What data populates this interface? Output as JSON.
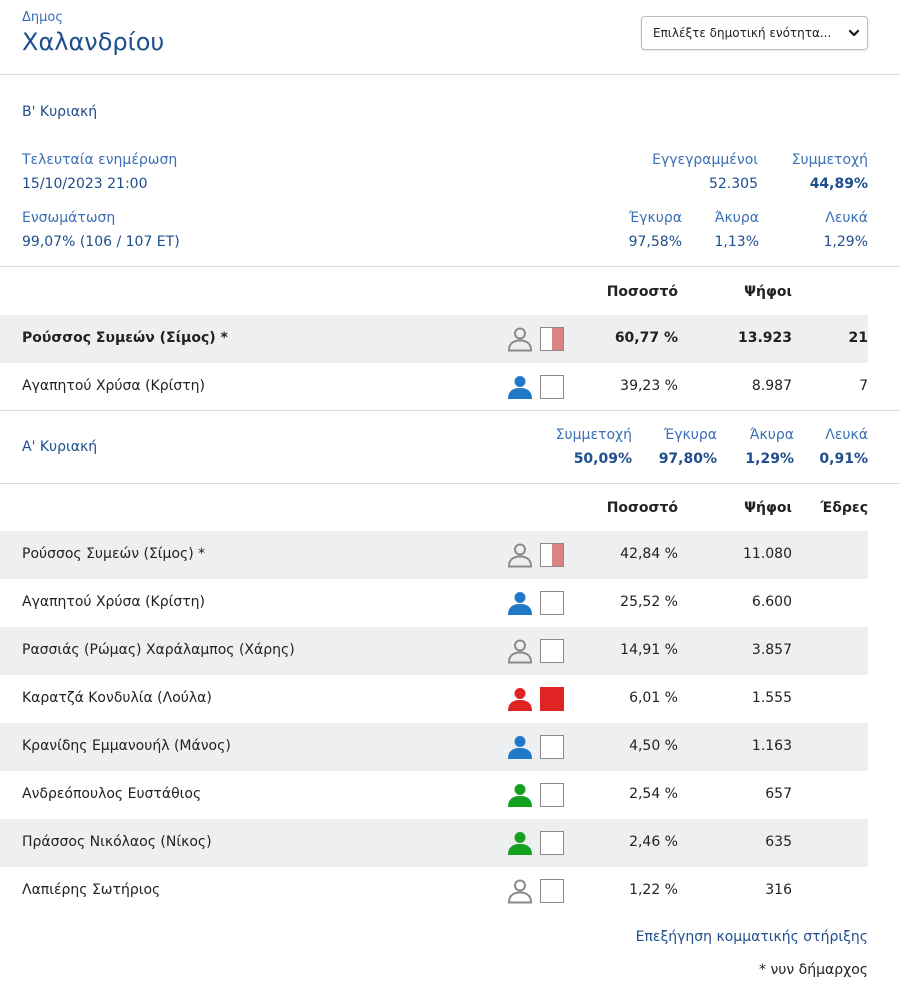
{
  "header": {
    "municipality_label": "Δημος",
    "municipality_name": "Χαλανδρίου",
    "unit_select": {
      "placeholder": "Επιλέξτε δημοτική ενότητα..."
    }
  },
  "second_round": {
    "title": "Β' Κυριακή",
    "last_update_label": "Τελευταία ενημέρωση",
    "last_update_value": "15/10/2023 21:00",
    "registered_label": "Εγγεγραμμένοι",
    "registered_value": "52.305",
    "turnout_label": "Συμμετοχή",
    "turnout_value": "44,89%",
    "incorporation_label": "Ενσωμάτωση",
    "incorporation_value": "99,07% (106 / 107 ΕΤ)",
    "valid_label": "Έγκυρα",
    "valid_value": "97,58%",
    "invalid_label": "Άκυρα",
    "invalid_value": "1,13%",
    "blank_label": "Λευκά",
    "blank_value": "1,29%",
    "columns": {
      "percent": "Ποσοστό",
      "votes": "Ψήφοι"
    },
    "candidates": [
      {
        "name": "Ρούσσος Συμεών (Σίμος) *",
        "icon": "person-icon",
        "icon_color": "#8a8a8a",
        "support_color": "#d98383",
        "support_fraction": 0.5,
        "percent": "60,77 %",
        "votes": "13.923",
        "seats": "21"
      },
      {
        "name": "Αγαπητού Χρύσα (Κρίστη)",
        "icon": "person-icon",
        "icon_color": "#1f78c8",
        "support_color": "",
        "support_fraction": 0,
        "percent": "39,23 %",
        "votes": "8.987",
        "seats": "7"
      }
    ]
  },
  "first_round": {
    "title": "Α' Κυριακή",
    "turnout_label": "Συμμετοχή",
    "turnout_value": "50,09%",
    "valid_label": "Έγκυρα",
    "valid_value": "97,80%",
    "invalid_label": "Άκυρα",
    "invalid_value": "1,29%",
    "blank_label": "Λευκά",
    "blank_value": "0,91%",
    "columns": {
      "percent": "Ποσοστό",
      "votes": "Ψήφοι",
      "seats": "Έδρες"
    },
    "candidates": [
      {
        "name": "Ρούσσος Συμεών (Σίμος) *",
        "icon": "person-icon",
        "icon_color": "#8a8a8a",
        "support_color": "#d98383",
        "support_fraction": 0.5,
        "percent": "42,84 %",
        "votes": "11.080"
      },
      {
        "name": "Αγαπητού Χρύσα (Κρίστη)",
        "icon": "person-icon",
        "icon_color": "#1f78c8",
        "support_color": "",
        "support_fraction": 0,
        "percent": "25,52 %",
        "votes": "6.600"
      },
      {
        "name": "Ρασσιάς (Ρώμας) Χαράλαμπος (Χάρης)",
        "icon": "person-icon",
        "icon_color": "#8a8a8a",
        "support_color": "",
        "support_fraction": 0,
        "percent": "14,91 %",
        "votes": "3.857"
      },
      {
        "name": "Καρατζά Κονδυλία (Λούλα)",
        "icon": "person-icon",
        "icon_color": "#e02424",
        "support_color": "#e02424",
        "support_fraction": 1,
        "percent": "6,01 %",
        "votes": "1.555"
      },
      {
        "name": "Κρανίδης Εμμανουήλ (Μάνος)",
        "icon": "person-icon",
        "icon_color": "#1f78c8",
        "support_color": "",
        "support_fraction": 0,
        "percent": "4,50 %",
        "votes": "1.163"
      },
      {
        "name": "Ανδρεόπουλος Ευστάθιος",
        "icon": "person-icon",
        "icon_color": "#15a01f",
        "support_color": "",
        "support_fraction": 0,
        "percent": "2,54 %",
        "votes": "657"
      },
      {
        "name": "Πράσσος Νικόλαος (Νίκος)",
        "icon": "person-icon",
        "icon_color": "#15a01f",
        "support_color": "",
        "support_fraction": 0,
        "percent": "2,46 %",
        "votes": "635"
      },
      {
        "name": "Λαπιέρης Σωτήριος",
        "icon": "person-icon",
        "icon_color": "#8a8a8a",
        "support_color": "",
        "support_fraction": 0,
        "percent": "1,22 %",
        "votes": "316"
      }
    ]
  },
  "footer": {
    "support_link": "Επεξήγηση κομματικής στήριξης",
    "incumbent_note": "* νυν δήμαρχος"
  }
}
